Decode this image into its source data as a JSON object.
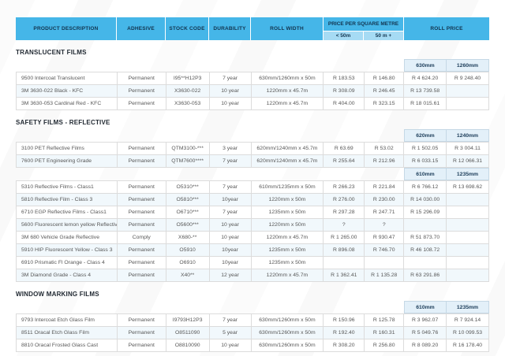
{
  "colors": {
    "header_blue": "#45B6E8",
    "header_sub_blue": "#A6DBF4",
    "size_header_bg": "#E3F0F9",
    "navy_text": "#1B3C59",
    "row_alt_tint": "#F1F8FC"
  },
  "header": {
    "columns": [
      "PRODUCT DESCRIPTION",
      "ADHESIVE",
      "STOCK CODE",
      "DURABILITY",
      "ROLL WIDTH"
    ],
    "price_group": {
      "label": "PRICE PER SQUARE METRE",
      "sub": [
        "< 50m",
        "50 m +"
      ]
    },
    "roll_price": "ROLL PRICE"
  },
  "sections": [
    {
      "title": "TRANSLUCENT FILMS",
      "blocks": [
        {
          "sizes": [
            "630mm",
            "1260mm"
          ],
          "rows": [
            [
              "9500 Intercoat Translucent",
              "Permanent",
              "I95**H12P3",
              "7 year",
              "630mm/1260mm x 50m",
              "R 183.53",
              "R 146.80",
              "R 4 624.20",
              "R 9 248.40"
            ],
            [
              "3M 3630-022 Black - KFC",
              "Permanent",
              "X3630-022",
              "10 year",
              "1220mm x 45.7m",
              "R 308.09",
              "R 246.45",
              "R 13 739.58",
              ""
            ],
            [
              "3M 3630-053 Cardinal Red - KFC",
              "Permanent",
              "X3630-053",
              "10 year",
              "1220mm x 45.7m",
              "R 404.00",
              "R 323.15",
              "R 18 015.61",
              ""
            ]
          ]
        }
      ]
    },
    {
      "title": "SAFETY FILMS - REFLECTIVE",
      "blocks": [
        {
          "sizes": [
            "620mm",
            "1240mm"
          ],
          "rows": [
            [
              "3100 PET Reflective Films",
              "Permanent",
              "QTM3100-***",
              "3 year",
              "620mm/1240mm x 45.7m",
              "R 63.69",
              "R 53.02",
              "R 1 502.05",
              "R 3 004.11"
            ],
            [
              "7600 PET Engineering Grade",
              "Permanent",
              "QTM7600****",
              "7 year",
              "620mm/1240mm x 45.7m",
              "R 255.64",
              "R 212.96",
              "R 6 033.15",
              "R 12 066.31"
            ]
          ]
        },
        {
          "sizes": [
            "610mm",
            "1235mm"
          ],
          "rows": [
            [
              "5310 Reflective Films - Class1",
              "Permanent",
              "O5310***",
              "7 year",
              "610mm/1235mm x 50m",
              "R 266.23",
              "R 221.84",
              "R 6 766.12",
              "R 13 698.62"
            ],
            [
              "5810 Reflective Film - Class 3",
              "Permanent",
              "O5810***",
              "10year",
              "1220mm x 50m",
              "R 276.00",
              "R 230.00",
              "R 14 030.00",
              ""
            ],
            [
              "6710 EGP Reflective Films - Class1",
              "Permanent",
              "O6710***",
              "7 year",
              "1235mm x 50m",
              "R 297.28",
              "R 247.71",
              "R 15 296.09",
              ""
            ],
            [
              "5600 Fluorescent lemon yellow Reflective",
              "Permanent",
              "O5600***",
              "10 year",
              "1220mm x 50m",
              "?",
              "?",
              "",
              ""
            ],
            [
              "3M 680 Vehicle Grade Reflective",
              "Comply",
              "X680-**",
              "10 year",
              "1220mm x 45.7m",
              "R 1 265.00",
              "R 930.47",
              "R 51 873.70",
              ""
            ],
            [
              "5910 HIP Fluorescent Yellow - Class 3",
              "Permanent",
              "O5910",
              "10year",
              "1235mm x 50m",
              "R 896.08",
              "R 746.70",
              "R 46 108.72",
              ""
            ],
            [
              "6910 Prismatic Fl Orange - Class 4",
              "Permanent",
              "O6910",
              "10year",
              "1235mm x 50m",
              "",
              "",
              "",
              ""
            ],
            [
              "3M Diamond Grade - Class 4",
              "Permanent",
              "X40**",
              "12 year",
              "1220mm x 45.7m",
              "R 1 362.41",
              "R 1 135.28",
              "R 63 291.86",
              ""
            ]
          ]
        }
      ]
    },
    {
      "title": "WINDOW MARKING FILMS",
      "blocks": [
        {
          "sizes": [
            "610mm",
            "1235mm"
          ],
          "rows": [
            [
              "9793 Intercoat Etch Glass Film",
              "Permanent",
              "I9793H12P3",
              "7 year",
              "630mm/1260mm x 50m",
              "R 150.96",
              "R 125.78",
              "R 3 962.07",
              "R 7 924.14"
            ],
            [
              "8511 Oracal Etch Glass Film",
              "Permanent",
              "O8511090",
              "5 year",
              "630mm/1260mm x 50m",
              "R 192.40",
              "R 160.31",
              "R 5 049.76",
              "R 10 099.53"
            ],
            [
              "8810 Oracal Frosted Glass Cast",
              "Permanent",
              "O8810090",
              "10 year",
              "630mm/1260mm x 50m",
              "R 308.20",
              "R 256.80",
              "R 8 089.20",
              "R 16 178.40"
            ]
          ]
        }
      ]
    }
  ]
}
